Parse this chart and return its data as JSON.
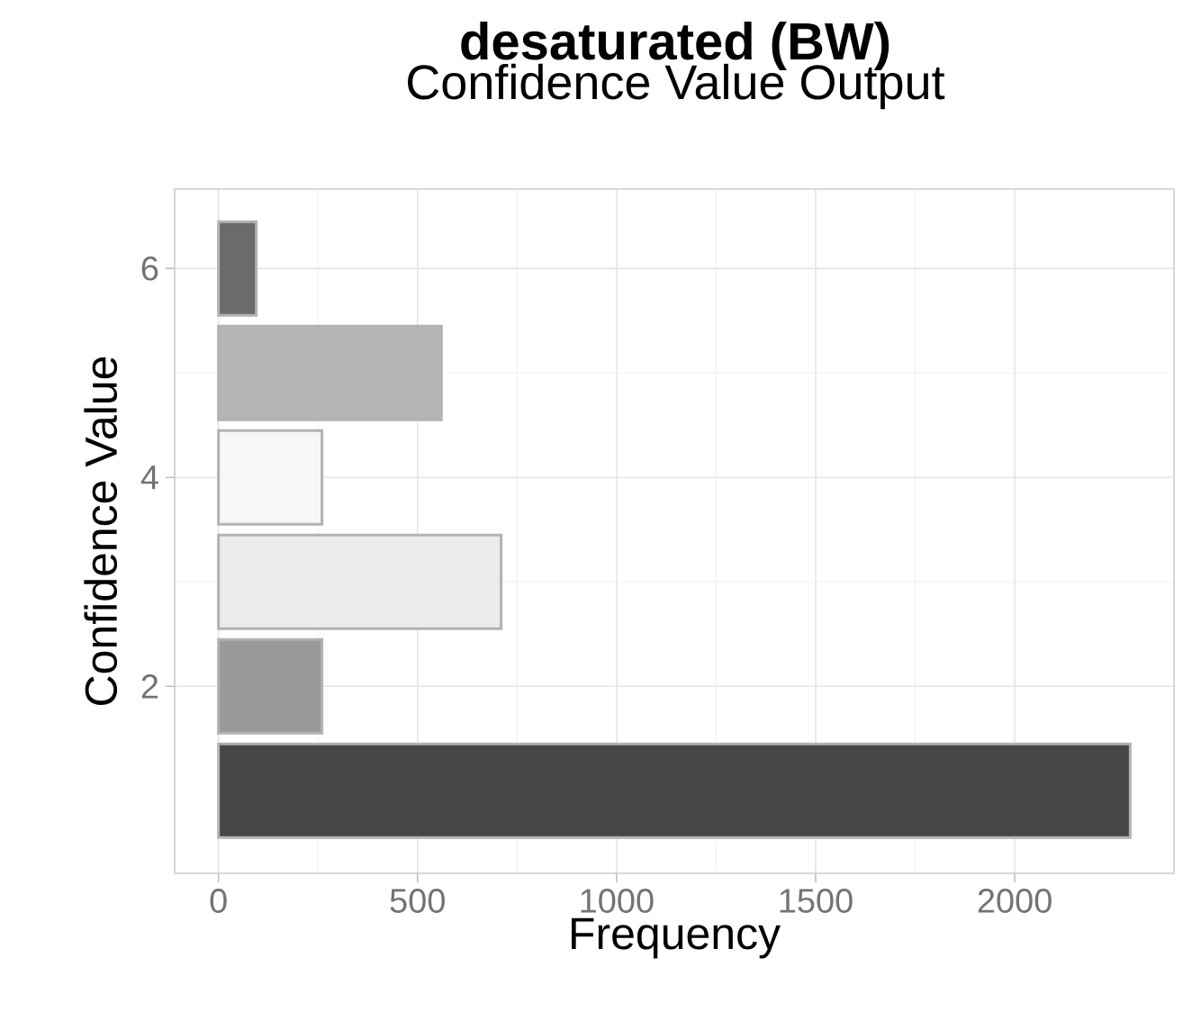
{
  "chart_data": {
    "type": "bar",
    "orientation": "horizontal",
    "title": "desaturated (BW)",
    "subtitle": "Confidence Value Output",
    "xlabel": "Frequency",
    "ylabel": "Confidence Value",
    "x": [
      1,
      2,
      3,
      4,
      5,
      6
    ],
    "values": [
      2290,
      260,
      710,
      260,
      560,
      95
    ],
    "colors": [
      "#464646",
      "#9a9a9a",
      "#ebebeb",
      "#f7f7f7",
      "#b5b5b5",
      "#6b6b6b"
    ],
    "xlim": [
      -110,
      2400
    ],
    "xticks": [
      0,
      500,
      1000,
      1500,
      2000
    ],
    "ylim": [
      0.21,
      6.76
    ],
    "yticks": [
      2,
      4,
      6
    ],
    "grid": true
  }
}
